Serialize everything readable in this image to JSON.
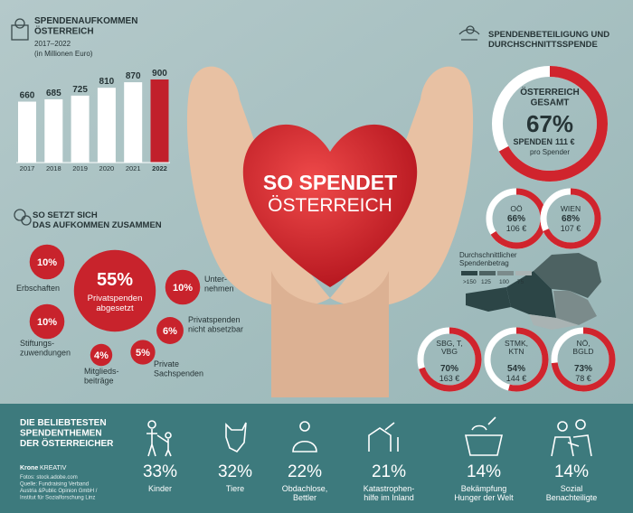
{
  "headline": {
    "line1": "SO SPENDET",
    "line2": "ÖSTERREICH"
  },
  "chart_data": [
    {
      "type": "bar",
      "title": "SPENDENAUFKOMMEN\nÖSTERREICH",
      "subtitle": "2017–2022",
      "note": "(in Millionen Euro)",
      "categories": [
        "2017",
        "2018",
        "2019",
        "2020",
        "2021",
        "2022"
      ],
      "values": [
        660,
        685,
        725,
        810,
        870,
        900
      ],
      "colors": [
        "#ffffff",
        "#ffffff",
        "#ffffff",
        "#ffffff",
        "#ffffff",
        "#c1202b"
      ]
    },
    {
      "type": "bubble",
      "title": "SO SETZT SICH\nDAS AUFKOMMEN ZUSAMMEN",
      "categories": [
        "Erbschaften",
        "Privatspenden\nabgesetzt",
        "Unter-\nnehmen",
        "Stiftungs-\nzuwendungen",
        "Privatspenden\nnicht absetzbar",
        "Mitglieds-\nbeiträge",
        "Private\nSachspenden"
      ],
      "values": [
        10,
        55,
        10,
        10,
        6,
        4,
        5
      ],
      "value_labels": [
        "10%",
        "55%",
        "10%",
        "10%",
        "6%",
        "4%",
        "5%"
      ],
      "color": "#c8232c"
    },
    {
      "type": "donut",
      "title": "SPENDENBETEILIGUNG UND\nDURCHSCHNITTSSPENDE",
      "categories": [
        "ÖSTERREICH\nGESAMT",
        "OÖ",
        "WIEN",
        "SBG, T,\nVBG",
        "STMK,\nKTN",
        "NÖ,\nBGLD"
      ],
      "values": [
        67,
        66,
        68,
        70,
        54,
        73
      ],
      "value_labels": [
        "67%",
        "66%",
        "68%",
        "70%",
        "54%",
        "73%"
      ],
      "amounts": [
        111,
        106,
        107,
        163,
        144,
        78
      ],
      "amount_labels": [
        "111 €",
        "106 €",
        "107 €",
        "163 €",
        "144 €",
        "78 €"
      ],
      "amount_prefix": "SPENDEN",
      "amount_note": "pro Spender",
      "color": "#d0242d",
      "track_color": "#ffffff",
      "legend": {
        "title": "Durchschnittlicher\nSpendenbetrag",
        "labels": [
          ">150",
          "125",
          "100",
          "75"
        ],
        "colors": [
          "#2c4546",
          "#4d6262",
          "#7b8b8b",
          "#a9b3b3"
        ]
      }
    },
    {
      "type": "pictogram",
      "title": "DIE BELIEBTESTEN\nSPENDENTHEMEN\nDER ÖSTERREICHER",
      "categories": [
        "Kinder",
        "Tiere",
        "Obdachlose,\nBettler",
        "Katastrophen-\nhilfe im Inland",
        "Bekämpfung\nHunger der Welt",
        "Sozial\nBenachteiligte"
      ],
      "values": [
        33,
        32,
        22,
        21,
        14,
        14
      ],
      "value_labels": [
        "33%",
        "32%",
        "22%",
        "21%",
        "14%",
        "14%"
      ]
    }
  ],
  "footer": {
    "brand": "Krone",
    "brand_suffix": "KREATIV",
    "sources": "Fotos: stock.adobe.com\nQuelle: Fundraising Verband\nAustria &Public Opinion GmbH /\nInstitut für Sozialforschung Linz"
  }
}
